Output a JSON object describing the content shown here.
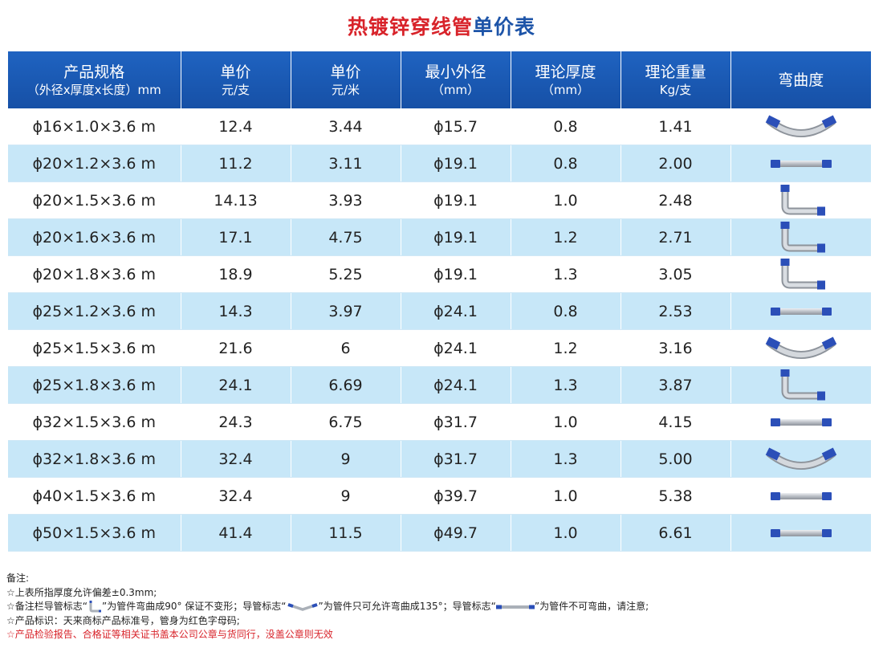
{
  "title": {
    "part1": "热镀锌穿线管",
    "part2": "单价表"
  },
  "columns": [
    {
      "line1": "产品规格",
      "line2": "（外径x厚度x长度）mm"
    },
    {
      "line1": "单价",
      "line2": "元/支"
    },
    {
      "line1": "单价",
      "line2": "元/米"
    },
    {
      "line1": "最小外径",
      "line2": "（mm）"
    },
    {
      "line1": "理论厚度",
      "line2": "（mm）"
    },
    {
      "line1": "理论重量",
      "line2": "Kg/支"
    },
    {
      "line1": "弯曲度",
      "line2": ""
    }
  ],
  "rows": [
    {
      "spec": "ϕ16×1.0×3.6 m",
      "price_each": "12.4",
      "price_m": "3.44",
      "min_od": "ϕ15.7",
      "thickness": "0.8",
      "weight": "1.41",
      "bend_icon": "pipe-bend-135-icon"
    },
    {
      "spec": "ϕ20×1.2×3.6 m",
      "price_each": "11.2",
      "price_m": "3.11",
      "min_od": "ϕ19.1",
      "thickness": "0.8",
      "weight": "2.00",
      "bend_icon": "pipe-straight-icon"
    },
    {
      "spec": "ϕ20×1.5×3.6 m",
      "price_each": "14.13",
      "price_m": "3.93",
      "min_od": "ϕ19.1",
      "thickness": "1.0",
      "weight": "2.48",
      "bend_icon": "pipe-bend-90-icon"
    },
    {
      "spec": "ϕ20×1.6×3.6 m",
      "price_each": "17.1",
      "price_m": "4.75",
      "min_od": "ϕ19.1",
      "thickness": "1.2",
      "weight": "2.71",
      "bend_icon": "pipe-bend-90-icon"
    },
    {
      "spec": "ϕ20×1.8×3.6 m",
      "price_each": "18.9",
      "price_m": "5.25",
      "min_od": "ϕ19.1",
      "thickness": "1.3",
      "weight": "3.05",
      "bend_icon": "pipe-bend-90-icon"
    },
    {
      "spec": "ϕ25×1.2×3.6 m",
      "price_each": "14.3",
      "price_m": "3.97",
      "min_od": "ϕ24.1",
      "thickness": "0.8",
      "weight": "2.53",
      "bend_icon": "pipe-straight-icon"
    },
    {
      "spec": "ϕ25×1.5×3.6 m",
      "price_each": "21.6",
      "price_m": "6",
      "min_od": "ϕ24.1",
      "thickness": "1.2",
      "weight": "3.16",
      "bend_icon": "pipe-bend-135-icon"
    },
    {
      "spec": "ϕ25×1.8×3.6 m",
      "price_each": "24.1",
      "price_m": "6.69",
      "min_od": "ϕ24.1",
      "thickness": "1.3",
      "weight": "3.87",
      "bend_icon": "pipe-bend-90-icon"
    },
    {
      "spec": "ϕ32×1.5×3.6 m",
      "price_each": "24.3",
      "price_m": "6.75",
      "min_od": "ϕ31.7",
      "thickness": "1.0",
      "weight": "4.15",
      "bend_icon": "pipe-straight-icon"
    },
    {
      "spec": "ϕ32×1.8×3.6 m",
      "price_each": "32.4",
      "price_m": "9",
      "min_od": "ϕ31.7",
      "thickness": "1.3",
      "weight": "5.00",
      "bend_icon": "pipe-bend-135-icon"
    },
    {
      "spec": "ϕ40×1.5×3.6 m",
      "price_each": "32.4",
      "price_m": "9",
      "min_od": "ϕ39.7",
      "thickness": "1.0",
      "weight": "5.38",
      "bend_icon": "pipe-straight-icon"
    },
    {
      "spec": "ϕ50×1.5×3.6 m",
      "price_each": "41.4",
      "price_m": "11.5",
      "min_od": "ϕ49.7",
      "thickness": "1.0",
      "weight": "6.61",
      "bend_icon": "pipe-straight-icon"
    }
  ],
  "notes": {
    "heading": "备注:",
    "line1": "☆上表所指厚度允许偏差±0.3mm;",
    "line2_a": "☆备注栏导管标志“",
    "line2_b": "”为管件弯曲成90° 保证不变形；导管标志“",
    "line2_c": "”为管件只可允许弯曲成135°；导管标志“",
    "line2_d": "”为管件不可弯曲，请注意;",
    "line3": "☆产品标识：天来商标产品标准号，管身为红色字母码;",
    "line4": "☆产品检验报告、合格证等相关证书盖本公司公章与货同行，没盖公章则无效"
  },
  "colors": {
    "title_red": "#d8232a",
    "title_blue": "#1d54a8",
    "header_blue": "#1f63c1",
    "stripe": "#c7e7f8",
    "pipe_end": "#2b4fb8",
    "pipe_body": "#c9cdd2"
  }
}
